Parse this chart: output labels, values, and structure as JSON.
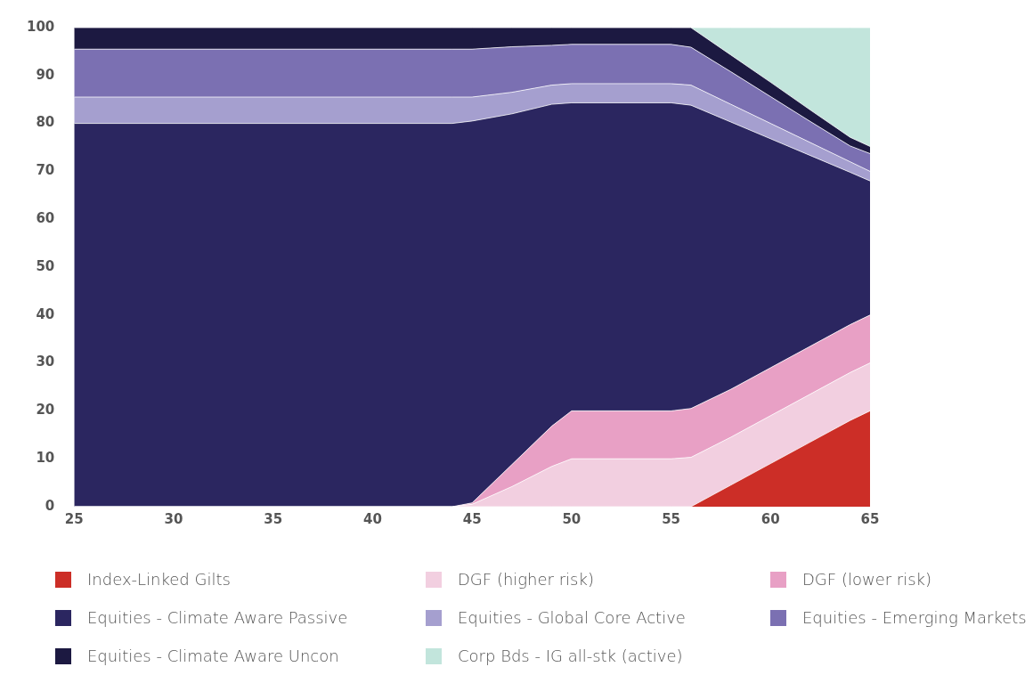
{
  "chart_data": {
    "type": "area",
    "stacked": true,
    "x": [
      25,
      44,
      45,
      47,
      49,
      50,
      55,
      56,
      58,
      60,
      62,
      64,
      65
    ],
    "xlim": [
      25,
      65
    ],
    "xticks": [
      25,
      30,
      35,
      40,
      45,
      50,
      55,
      60,
      65
    ],
    "ylim": [
      0,
      100
    ],
    "yticks": [
      0,
      10,
      20,
      30,
      40,
      50,
      60,
      70,
      80,
      90,
      100
    ],
    "grid": false,
    "legend": "bottom",
    "series": [
      {
        "name": "Index-Linked Gilts",
        "color": "#cc2e27",
        "values": [
          0,
          0,
          0,
          0,
          0,
          0,
          0,
          0,
          4.5,
          9,
          13.5,
          18,
          20
        ]
      },
      {
        "name": "DGF (higher risk)",
        "color": "#f2cfe0",
        "values": [
          0,
          0,
          0.5,
          4.2,
          8.4,
          10,
          10,
          10.3,
          10,
          10,
          10,
          10,
          10
        ]
      },
      {
        "name": "DGF (lower risk)",
        "color": "#e8a0c5",
        "values": [
          0,
          0,
          0.3,
          4.6,
          8.4,
          10,
          10,
          10.2,
          10,
          10,
          10,
          10,
          10
        ]
      },
      {
        "name": "Equities - Climate Aware Passive",
        "color": "#2b2660",
        "values": [
          80,
          80,
          79.7,
          73.2,
          67.2,
          64.3,
          64.3,
          63.3,
          55.8,
          47.8,
          39.8,
          31.8,
          28
        ]
      },
      {
        "name": "Equities - Global Core Active",
        "color": "#a59fcf",
        "values": [
          5.5,
          5.5,
          5,
          4.5,
          4,
          4,
          4,
          4.2,
          3.7,
          3.2,
          2.7,
          2.2,
          2
        ]
      },
      {
        "name": "Equities - Emerging Markets",
        "color": "#7b70b2",
        "values": [
          10,
          10,
          10,
          9.5,
          8.3,
          8.2,
          8.2,
          7.9,
          6.8,
          5.6,
          4.4,
          3.3,
          3.7
        ]
      },
      {
        "name": "Equities - Climate Aware Uncon",
        "color": "#1c1941",
        "values": [
          4.5,
          4.5,
          4.5,
          4,
          3.7,
          3.5,
          3.5,
          4.1,
          3.5,
          3,
          2.4,
          1.8,
          1.5
        ]
      },
      {
        "name": "Corp Bds - IG all-stk (active)",
        "color": "#c2e5dc",
        "values": [
          0,
          0,
          0,
          0,
          0,
          0,
          0,
          0,
          5.7,
          11.4,
          17.2,
          22.9,
          24.8
        ]
      }
    ]
  }
}
